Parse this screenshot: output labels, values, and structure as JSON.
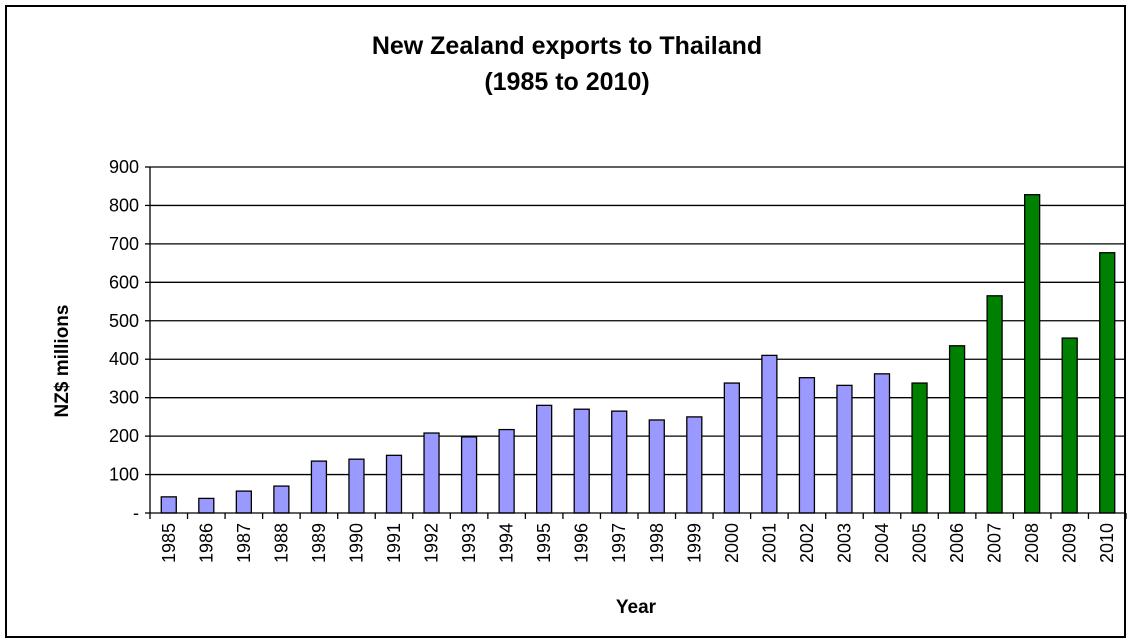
{
  "chart_data": {
    "type": "bar",
    "title": [
      "New Zealand exports to Thailand",
      "(1985 to 2010)"
    ],
    "xlabel": "Year",
    "ylabel": "NZ$ millions",
    "ylim": [
      0,
      900
    ],
    "yticks": [
      0,
      100,
      200,
      300,
      400,
      500,
      600,
      700,
      800,
      900
    ],
    "ytick_labels": [
      "-",
      "100",
      "200",
      "300",
      "400",
      "500",
      "600",
      "700",
      "800",
      "900"
    ],
    "grid": true,
    "categories": [
      "1985",
      "1986",
      "1987",
      "1988",
      "1989",
      "1990",
      "1991",
      "1992",
      "1993",
      "1994",
      "1995",
      "1996",
      "1997",
      "1998",
      "1999",
      "2000",
      "2001",
      "2002",
      "2003",
      "2004",
      "2005",
      "2006",
      "2007",
      "2008",
      "2009",
      "2010"
    ],
    "values": [
      42,
      38,
      57,
      70,
      135,
      140,
      150,
      208,
      198,
      217,
      280,
      270,
      265,
      242,
      250,
      338,
      410,
      352,
      332,
      362,
      338,
      435,
      565,
      828,
      455,
      677
    ],
    "colors": [
      "#9999ff",
      "#9999ff",
      "#9999ff",
      "#9999ff",
      "#9999ff",
      "#9999ff",
      "#9999ff",
      "#9999ff",
      "#9999ff",
      "#9999ff",
      "#9999ff",
      "#9999ff",
      "#9999ff",
      "#9999ff",
      "#9999ff",
      "#9999ff",
      "#9999ff",
      "#9999ff",
      "#9999ff",
      "#9999ff",
      "#008000",
      "#008000",
      "#008000",
      "#008000",
      "#008000",
      "#008000"
    ]
  }
}
